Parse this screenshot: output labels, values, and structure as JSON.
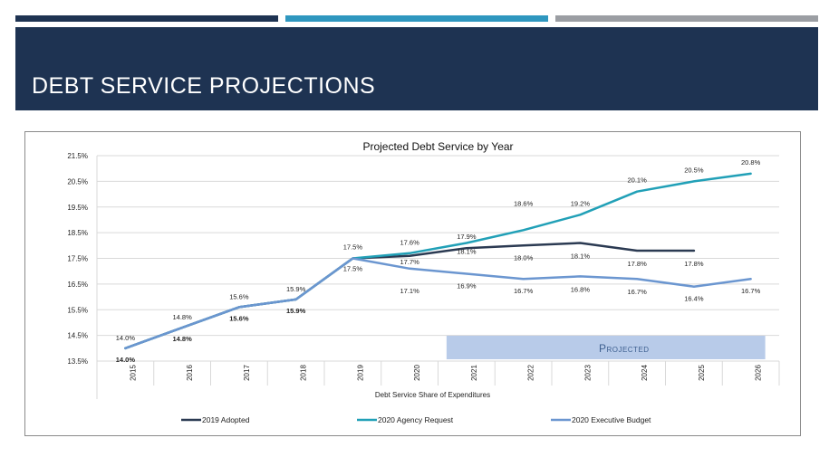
{
  "page": {
    "title": "DEBT SERVICE PROJECTIONS",
    "accent_colors": [
      "#1e3352",
      "#2f97bf",
      "#9b9ea3"
    ]
  },
  "chart_data": {
    "type": "line",
    "title": "Projected Debt Service by Year",
    "xlabel": "Debt Service Share of Expenditures",
    "ylabel": "",
    "categories": [
      "2015",
      "2016",
      "2017",
      "2018",
      "2019",
      "2020",
      "2021",
      "2022",
      "2023",
      "2024",
      "2025",
      "2026"
    ],
    "ylim": [
      13.5,
      21.5
    ],
    "yticks": [
      "13.5%",
      "14.5%",
      "15.5%",
      "16.5%",
      "17.5%",
      "18.5%",
      "19.5%",
      "20.5%",
      "21.5%"
    ],
    "grid": true,
    "legend_position": "bottom",
    "series": [
      {
        "name": "2019 Adopted",
        "color": "#2b3a52",
        "values": [
          14.0,
          14.8,
          15.6,
          15.9,
          17.5,
          17.6,
          17.9,
          18.0,
          18.1,
          17.8,
          17.8,
          null
        ],
        "labels": [
          "14.0%",
          "14.8%",
          "15.6%",
          "15.9%",
          "17.5%",
          "17.6%",
          "17.9%",
          "18.0%",
          "18.1%",
          "17.8%",
          "17.8%",
          null
        ]
      },
      {
        "name": "2020 Agency Request",
        "color": "#21a0b7",
        "values": [
          14.0,
          14.8,
          15.6,
          15.9,
          17.5,
          17.7,
          18.1,
          18.6,
          19.2,
          20.1,
          20.5,
          20.8
        ],
        "labels": [
          null,
          null,
          null,
          null,
          null,
          "17.7%",
          "18.1%",
          "18.6%",
          "19.2%",
          "20.1%",
          "20.5%",
          "20.8%"
        ]
      },
      {
        "name": "2020 Executive Budget",
        "color": "#6b96d0",
        "values": [
          14.0,
          14.8,
          15.6,
          15.9,
          17.5,
          17.1,
          16.9,
          16.7,
          16.8,
          16.7,
          16.4,
          16.7
        ],
        "labels": [
          "14.0%",
          "14.8%",
          "15.6%",
          "15.9%",
          "17.5%",
          "17.1%",
          "16.9%",
          "16.7%",
          "16.8%",
          "16.7%",
          "16.4%",
          "16.7%"
        ]
      }
    ],
    "annotation": {
      "text": "Projected",
      "start_category": "2021",
      "end_category": "2026",
      "color": "#b8cbe9",
      "text_color": "#3d5f8f"
    }
  }
}
